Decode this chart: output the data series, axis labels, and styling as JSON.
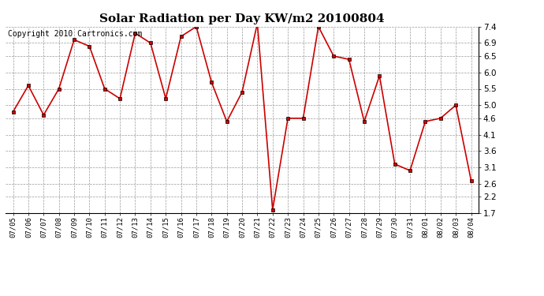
{
  "title": "Solar Radiation per Day KW/m2 20100804",
  "copyright": "Copyright 2010 Cartronics.com",
  "dates": [
    "07/05",
    "07/06",
    "07/07",
    "07/08",
    "07/09",
    "07/10",
    "07/11",
    "07/12",
    "07/13",
    "07/14",
    "07/15",
    "07/16",
    "07/17",
    "07/18",
    "07/19",
    "07/20",
    "07/21",
    "07/22",
    "07/23",
    "07/24",
    "07/25",
    "07/26",
    "07/27",
    "07/28",
    "07/29",
    "07/30",
    "07/31",
    "08/01",
    "08/02",
    "08/03",
    "08/04"
  ],
  "values": [
    4.8,
    5.6,
    4.7,
    5.5,
    7.0,
    6.8,
    5.5,
    5.2,
    7.2,
    6.9,
    5.2,
    7.1,
    7.4,
    5.7,
    4.5,
    5.4,
    7.5,
    1.8,
    4.6,
    4.6,
    7.4,
    6.5,
    6.4,
    4.5,
    5.9,
    3.2,
    3.0,
    4.5,
    4.6,
    5.0,
    2.7
  ],
  "line_color": "#cc0000",
  "marker_color": "#000000",
  "background_color": "#ffffff",
  "grid_color": "#999999",
  "ylim": [
    1.7,
    7.4
  ],
  "yticks": [
    1.7,
    2.2,
    2.6,
    3.1,
    3.6,
    4.1,
    4.6,
    5.0,
    5.5,
    6.0,
    6.5,
    6.9,
    7.4
  ],
  "title_fontsize": 11,
  "copyright_fontsize": 7
}
